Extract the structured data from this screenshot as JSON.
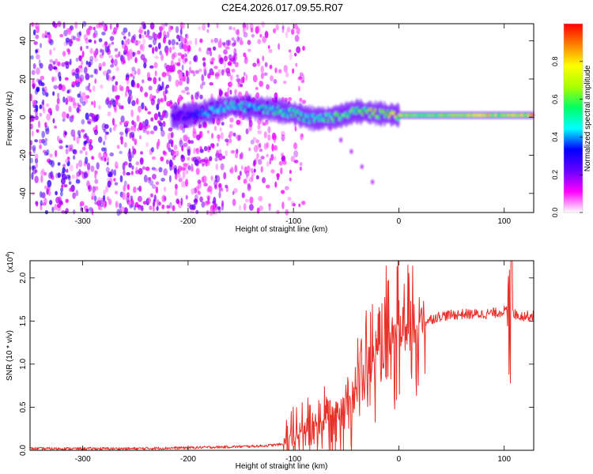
{
  "figure_title": "C2E4.2026.017.09.55.R07",
  "chart_data": [
    {
      "type": "heatmap",
      "title": "C2E4.2026.017.09.55.R07",
      "xlabel": "Height of straight line (km)",
      "ylabel": "Frequency (Hz)",
      "xlim": [
        -350,
        128
      ],
      "ylim": [
        -50,
        49
      ],
      "xticks": [
        -300,
        -200,
        -100,
        0,
        100
      ],
      "yticks": [
        -40,
        -20,
        0,
        20,
        40
      ],
      "xtick_labels": [
        "-300",
        "-200",
        "-100",
        "0",
        "100"
      ],
      "ytick_labels": [
        "-40",
        "-20",
        "0",
        "20",
        "40"
      ],
      "colorbar": {
        "label": "Normalized spectral amplitude",
        "range": [
          0,
          1
        ],
        "ticks": [
          0.0,
          0.2,
          0.4,
          0.6,
          0.8
        ],
        "tick_labels": [
          "0.0",
          "0.2",
          "0.4",
          "0.6",
          "0.8"
        ],
        "colormap": [
          "#ffffff",
          "#ff00ff",
          "#6600ff",
          "#0000ff",
          "#00ffff",
          "#00ff66",
          "#aaff00",
          "#ffff00",
          "#ff8000",
          "#ff0000"
        ]
      },
      "noise_region_x": [
        -350,
        -120
      ],
      "signal_track": {
        "x": [
          -215,
          -200,
          -180,
          -160,
          -140,
          -120,
          -100,
          -80,
          -60,
          -40,
          -20,
          0,
          20,
          50,
          80,
          100,
          128
        ],
        "freq": [
          0,
          1,
          3,
          6,
          5,
          4,
          2,
          -1,
          0,
          3,
          2,
          1,
          1,
          1,
          1,
          1,
          1
        ],
        "amplitude": [
          0.25,
          0.3,
          0.45,
          0.5,
          0.45,
          0.5,
          0.55,
          0.5,
          0.6,
          0.6,
          0.7,
          0.75,
          0.6,
          0.65,
          0.8,
          0.7,
          0.85
        ]
      },
      "descending_branch": {
        "x": [
          -65,
          -55,
          -45,
          -35,
          -25
        ],
        "freq": [
          -6,
          -12,
          -18,
          -26,
          -34
        ]
      }
    },
    {
      "type": "line",
      "xlabel": "Height of straight line (km)",
      "ylabel": "SNR (10 * v/v)",
      "exponent_label": "(x10",
      "exponent_power": "4",
      "exponent_close": ")",
      "xlim": [
        -350,
        128
      ],
      "ylim": [
        0,
        2.2
      ],
      "xticks": [
        -300,
        -200,
        -100,
        0,
        100
      ],
      "yticks": [
        0.0,
        0.5,
        1.0,
        1.5,
        2.0
      ],
      "xtick_labels": [
        "-300",
        "-200",
        "-100",
        "0",
        "100"
      ],
      "ytick_labels": [
        "0.0",
        "0.5",
        "1.0",
        "1.5",
        "2.0"
      ],
      "line_color": "#e8312a",
      "series": [
        {
          "name": "SNR",
          "x": [
            -350,
            -300,
            -250,
            -200,
            -160,
            -130,
            -110,
            -100,
            -90,
            -80,
            -70,
            -60,
            -50,
            -40,
            -30,
            -20,
            -10,
            0,
            10,
            20,
            30,
            40,
            60,
            80,
            95,
            100,
            104,
            107,
            110,
            115,
            128
          ],
          "values": [
            0.02,
            0.02,
            0.02,
            0.03,
            0.04,
            0.05,
            0.07,
            0.12,
            0.25,
            0.3,
            0.35,
            0.45,
            0.55,
            0.75,
            0.95,
            1.1,
            1.2,
            1.3,
            1.38,
            1.46,
            1.52,
            1.56,
            1.58,
            1.58,
            1.6,
            1.62,
            1.6,
            1.65,
            1.58,
            1.56,
            1.56
          ]
        }
      ]
    }
  ]
}
